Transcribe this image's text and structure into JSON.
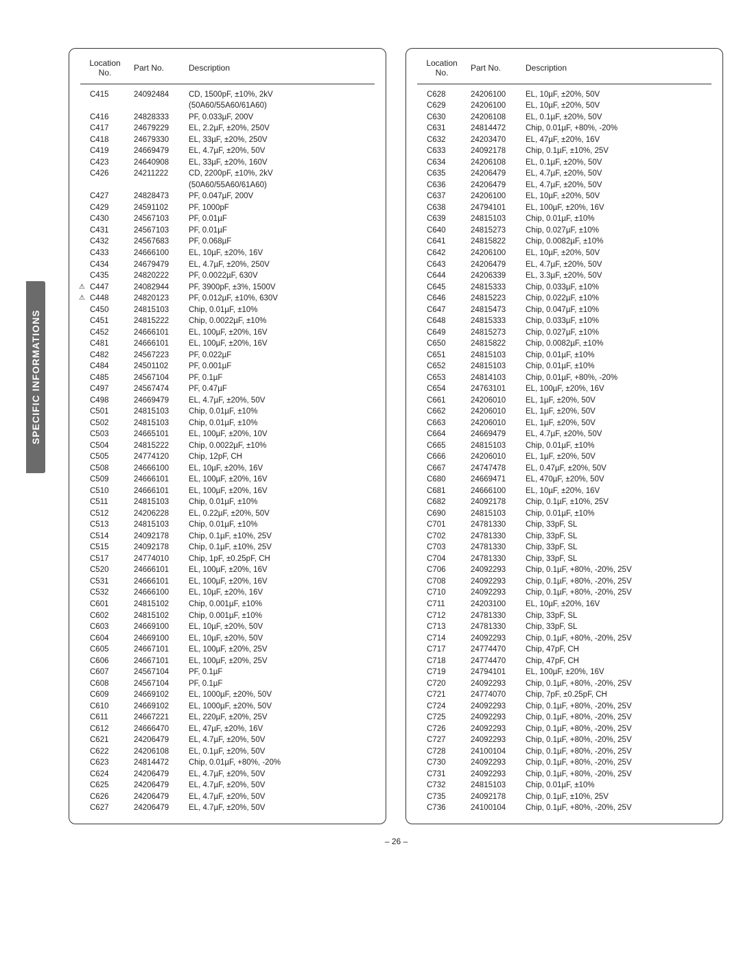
{
  "side_tab": "SPECIFIC INFORMATIONS",
  "page_number": "– 26 –",
  "headers": {
    "location": "Location\nNo.",
    "part_no": "Part No.",
    "description": "Description"
  },
  "left_rows": [
    {
      "loc": "C415",
      "pn": "24092484",
      "desc": "CD, 1500pF, ±10%, 2kV"
    },
    {
      "loc": "",
      "pn": "",
      "desc": "(50A60/55A60/61A60)"
    },
    {
      "loc": "C416",
      "pn": "24828333",
      "desc": "PF, 0.033µF, 200V"
    },
    {
      "loc": "C417",
      "pn": "24679229",
      "desc": "EL, 2.2µF, ±20%, 250V"
    },
    {
      "loc": "C418",
      "pn": "24679330",
      "desc": "EL, 33µF, ±20%, 250V"
    },
    {
      "loc": "C419",
      "pn": "24669479",
      "desc": "EL, 4.7µF, ±20%, 50V"
    },
    {
      "loc": "C423",
      "pn": "24640908",
      "desc": "EL, 33µF, ±20%, 160V"
    },
    {
      "loc": "C426",
      "pn": "24211222",
      "desc": "CD, 2200pF, ±10%, 2kV"
    },
    {
      "loc": "",
      "pn": "",
      "desc": "(50A60/55A60/61A60)"
    },
    {
      "loc": "C427",
      "pn": "24828473",
      "desc": "PF, 0.047µF, 200V"
    },
    {
      "loc": "C429",
      "pn": "24591102",
      "desc": "PF, 1000pF"
    },
    {
      "loc": "C430",
      "pn": "24567103",
      "desc": "PF, 0.01µF"
    },
    {
      "loc": "C431",
      "pn": "24567103",
      "desc": "PF, 0.01µF"
    },
    {
      "loc": "C432",
      "pn": "24567683",
      "desc": "PF, 0.068µF"
    },
    {
      "loc": "C433",
      "pn": "24666100",
      "desc": "EL, 10µF, ±20%, 16V"
    },
    {
      "loc": "C434",
      "pn": "24679479",
      "desc": "EL, 4.7µF, ±20%, 250V"
    },
    {
      "loc": "C435",
      "pn": "24820222",
      "desc": "PF, 0.0022µF, 630V"
    },
    {
      "loc": "C447",
      "pn": "24082944",
      "desc": "PF, 3900pF, ±3%, 1500V",
      "warn": true
    },
    {
      "loc": "C448",
      "pn": "24820123",
      "desc": "PF, 0.012µF, ±10%, 630V",
      "warn": true
    },
    {
      "loc": "C450",
      "pn": "24815103",
      "desc": "Chip, 0.01µF, ±10%"
    },
    {
      "loc": "C451",
      "pn": "24815222",
      "desc": "Chip, 0.0022µF, ±10%"
    },
    {
      "loc": "C452",
      "pn": "24666101",
      "desc": "EL, 100µF, ±20%, 16V"
    },
    {
      "loc": "C481",
      "pn": "24666101",
      "desc": "EL, 100µF, ±20%, 16V"
    },
    {
      "loc": "C482",
      "pn": "24567223",
      "desc": "PF, 0.022µF"
    },
    {
      "loc": "C484",
      "pn": "24501102",
      "desc": "PF, 0.001µF"
    },
    {
      "loc": "C485",
      "pn": "24567104",
      "desc": "PF, 0.1µF"
    },
    {
      "loc": "C497",
      "pn": "24567474",
      "desc": "PF, 0.47µF"
    },
    {
      "loc": "C498",
      "pn": "24669479",
      "desc": "EL, 4.7µF, ±20%, 50V"
    },
    {
      "loc": "C501",
      "pn": "24815103",
      "desc": "Chip, 0.01µF, ±10%"
    },
    {
      "loc": "C502",
      "pn": "24815103",
      "desc": "Chip, 0.01µF, ±10%"
    },
    {
      "loc": "C503",
      "pn": "24665101",
      "desc": "EL, 100µF, ±20%, 10V"
    },
    {
      "loc": "C504",
      "pn": "24815222",
      "desc": "Chip, 0.0022µF, ±10%"
    },
    {
      "loc": "C505",
      "pn": "24774120",
      "desc": "Chip, 12pF, CH"
    },
    {
      "loc": "C508",
      "pn": "24666100",
      "desc": "EL, 10µF, ±20%, 16V"
    },
    {
      "loc": "C509",
      "pn": "24666101",
      "desc": "EL, 100µF, ±20%, 16V"
    },
    {
      "loc": "C510",
      "pn": "24666101",
      "desc": "EL, 100µF, ±20%, 16V"
    },
    {
      "loc": "C511",
      "pn": "24815103",
      "desc": "Chip, 0.01µF, ±10%"
    },
    {
      "loc": "C512",
      "pn": "24206228",
      "desc": "EL, 0.22µF, ±20%, 50V"
    },
    {
      "loc": "C513",
      "pn": "24815103",
      "desc": "Chip, 0.01µF, ±10%"
    },
    {
      "loc": "C514",
      "pn": "24092178",
      "desc": "Chip, 0.1µF, ±10%, 25V"
    },
    {
      "loc": "C515",
      "pn": "24092178",
      "desc": "Chip, 0.1µF, ±10%, 25V"
    },
    {
      "loc": "C517",
      "pn": "24774010",
      "desc": "Chip, 1pF, ±0.25pF, CH"
    },
    {
      "loc": "C520",
      "pn": "24666101",
      "desc": "EL, 100µF, ±20%, 16V"
    },
    {
      "loc": "C531",
      "pn": "24666101",
      "desc": "EL, 100µF, ±20%, 16V"
    },
    {
      "loc": "C532",
      "pn": "24666100",
      "desc": "EL, 10µF, ±20%, 16V"
    },
    {
      "loc": "C601",
      "pn": "24815102",
      "desc": "Chip, 0.001µF, ±10%"
    },
    {
      "loc": "C602",
      "pn": "24815102",
      "desc": "Chip, 0.001µF, ±10%"
    },
    {
      "loc": "C603",
      "pn": "24669100",
      "desc": "EL, 10µF, ±20%, 50V"
    },
    {
      "loc": "C604",
      "pn": "24669100",
      "desc": "EL, 10µF, ±20%, 50V"
    },
    {
      "loc": "C605",
      "pn": "24667101",
      "desc": "EL, 100µF, ±20%, 25V"
    },
    {
      "loc": "C606",
      "pn": "24667101",
      "desc": "EL, 100µF, ±20%, 25V"
    },
    {
      "loc": "C607",
      "pn": "24567104",
      "desc": "PF, 0.1µF"
    },
    {
      "loc": "C608",
      "pn": "24567104",
      "desc": "PF, 0.1µF"
    },
    {
      "loc": "C609",
      "pn": "24669102",
      "desc": "EL, 1000µF, ±20%, 50V"
    },
    {
      "loc": "C610",
      "pn": "24669102",
      "desc": "EL, 1000µF, ±20%, 50V"
    },
    {
      "loc": "C611",
      "pn": "24667221",
      "desc": "EL, 220µF, ±20%, 25V"
    },
    {
      "loc": "C612",
      "pn": "24666470",
      "desc": "EL, 47µF, ±20%, 16V"
    },
    {
      "loc": "C621",
      "pn": "24206479",
      "desc": "EL, 4.7µF, ±20%, 50V"
    },
    {
      "loc": "C622",
      "pn": "24206108",
      "desc": "EL, 0.1µF, ±20%, 50V"
    },
    {
      "loc": "C623",
      "pn": "24814472",
      "desc": "Chip, 0.01µF, +80%, -20%"
    },
    {
      "loc": "C624",
      "pn": "24206479",
      "desc": "EL, 4.7µF, ±20%, 50V"
    },
    {
      "loc": "C625",
      "pn": "24206479",
      "desc": "EL, 4.7µF, ±20%, 50V"
    },
    {
      "loc": "C626",
      "pn": "24206479",
      "desc": "EL, 4.7µF, ±20%, 50V"
    },
    {
      "loc": "C627",
      "pn": "24206479",
      "desc": "EL, 4.7µF, ±20%, 50V"
    }
  ],
  "right_rows": [
    {
      "loc": "C628",
      "pn": "24206100",
      "desc": "EL, 10µF, ±20%, 50V"
    },
    {
      "loc": "C629",
      "pn": "24206100",
      "desc": "EL, 10µF, ±20%, 50V"
    },
    {
      "loc": "C630",
      "pn": "24206108",
      "desc": "EL, 0.1µF, ±20%, 50V"
    },
    {
      "loc": "C631",
      "pn": "24814472",
      "desc": "Chip, 0.01µF, +80%, -20%"
    },
    {
      "loc": "C632",
      "pn": "24203470",
      "desc": "EL, 47µF, ±20%, 16V"
    },
    {
      "loc": "C633",
      "pn": "24092178",
      "desc": "Chip, 0.1µF, ±10%, 25V"
    },
    {
      "loc": "C634",
      "pn": "24206108",
      "desc": "EL, 0.1µF, ±20%, 50V"
    },
    {
      "loc": "C635",
      "pn": "24206479",
      "desc": "EL, 4.7µF, ±20%, 50V"
    },
    {
      "loc": "C636",
      "pn": "24206479",
      "desc": "EL, 4.7µF, ±20%, 50V"
    },
    {
      "loc": "C637",
      "pn": "24206100",
      "desc": "EL, 10µF, ±20%, 50V"
    },
    {
      "loc": "C638",
      "pn": "24794101",
      "desc": "EL, 100µF, ±20%, 16V"
    },
    {
      "loc": "C639",
      "pn": "24815103",
      "desc": "Chip, 0.01µF, ±10%"
    },
    {
      "loc": "C640",
      "pn": "24815273",
      "desc": "Chip, 0.027µF, ±10%"
    },
    {
      "loc": "C641",
      "pn": "24815822",
      "desc": "Chip, 0.0082µF, ±10%"
    },
    {
      "loc": "C642",
      "pn": "24206100",
      "desc": "EL, 10µF, ±20%, 50V"
    },
    {
      "loc": "C643",
      "pn": "24206479",
      "desc": "EL, 4.7µF, ±20%, 50V"
    },
    {
      "loc": "C644",
      "pn": "24206339",
      "desc": "EL, 3.3µF, ±20%, 50V"
    },
    {
      "loc": "C645",
      "pn": "24815333",
      "desc": "Chip, 0.033µF, ±10%"
    },
    {
      "loc": "C646",
      "pn": "24815223",
      "desc": "Chip, 0.022µF, ±10%"
    },
    {
      "loc": "C647",
      "pn": "24815473",
      "desc": "Chip, 0.047µF, ±10%"
    },
    {
      "loc": "C648",
      "pn": "24815333",
      "desc": "Chip, 0.033µF, ±10%"
    },
    {
      "loc": "C649",
      "pn": "24815273",
      "desc": "Chip, 0.027µF, ±10%"
    },
    {
      "loc": "C650",
      "pn": "24815822",
      "desc": "Chip, 0.0082µF, ±10%"
    },
    {
      "loc": "C651",
      "pn": "24815103",
      "desc": "Chip, 0.01µF, ±10%"
    },
    {
      "loc": "C652",
      "pn": "24815103",
      "desc": "Chip, 0.01µF, ±10%"
    },
    {
      "loc": "C653",
      "pn": "24814103",
      "desc": "Chip, 0.01µF, +80%, -20%"
    },
    {
      "loc": "C654",
      "pn": "24763101",
      "desc": "EL, 100µF, ±20%, 16V"
    },
    {
      "loc": "C661",
      "pn": "24206010",
      "desc": "EL, 1µF, ±20%, 50V"
    },
    {
      "loc": "C662",
      "pn": "24206010",
      "desc": "EL, 1µF, ±20%, 50V"
    },
    {
      "loc": "C663",
      "pn": "24206010",
      "desc": "EL, 1µF, ±20%, 50V"
    },
    {
      "loc": "C664",
      "pn": "24669479",
      "desc": "EL, 4.7µF, ±20%, 50V"
    },
    {
      "loc": "C665",
      "pn": "24815103",
      "desc": "Chip, 0.01µF, ±10%"
    },
    {
      "loc": "C666",
      "pn": "24206010",
      "desc": "EL, 1µF, ±20%, 50V"
    },
    {
      "loc": "C667",
      "pn": "24747478",
      "desc": "EL, 0.47µF, ±20%, 50V"
    },
    {
      "loc": "C680",
      "pn": "24669471",
      "desc": "EL, 470µF, ±20%, 50V"
    },
    {
      "loc": "C681",
      "pn": "24666100",
      "desc": "EL, 10µF, ±20%, 16V"
    },
    {
      "loc": "C682",
      "pn": "24092178",
      "desc": "Chip, 0.1µF, ±10%, 25V"
    },
    {
      "loc": "C690",
      "pn": "24815103",
      "desc": "Chip, 0.01µF, ±10%"
    },
    {
      "loc": "C701",
      "pn": "24781330",
      "desc": "Chip, 33pF, SL"
    },
    {
      "loc": "C702",
      "pn": "24781330",
      "desc": "Chip, 33pF, SL"
    },
    {
      "loc": "C703",
      "pn": "24781330",
      "desc": "Chip, 33pF, SL"
    },
    {
      "loc": "C704",
      "pn": "24781330",
      "desc": "Chip, 33pF, SL"
    },
    {
      "loc": "C706",
      "pn": "24092293",
      "desc": "Chip, 0.1µF, +80%, -20%, 25V"
    },
    {
      "loc": "C708",
      "pn": "24092293",
      "desc": "Chip, 0.1µF, +80%, -20%, 25V"
    },
    {
      "loc": "C710",
      "pn": "24092293",
      "desc": "Chip, 0.1µF, +80%, -20%, 25V"
    },
    {
      "loc": "C711",
      "pn": "24203100",
      "desc": "EL, 10µF, ±20%, 16V"
    },
    {
      "loc": "C712",
      "pn": "24781330",
      "desc": "Chip, 33pF, SL"
    },
    {
      "loc": "C713",
      "pn": "24781330",
      "desc": "Chip, 33pF, SL"
    },
    {
      "loc": "C714",
      "pn": "24092293",
      "desc": "Chip, 0.1µF, +80%, -20%, 25V"
    },
    {
      "loc": "C717",
      "pn": "24774470",
      "desc": "Chip, 47pF, CH"
    },
    {
      "loc": "C718",
      "pn": "24774470",
      "desc": "Chip, 47pF, CH"
    },
    {
      "loc": "C719",
      "pn": "24794101",
      "desc": "EL, 100µF, ±20%, 16V"
    },
    {
      "loc": "C720",
      "pn": "24092293",
      "desc": "Chip, 0.1µF, +80%, -20%, 25V"
    },
    {
      "loc": "C721",
      "pn": "24774070",
      "desc": "Chip, 7pF, ±0.25pF, CH"
    },
    {
      "loc": "C724",
      "pn": "24092293",
      "desc": "Chip, 0.1µF, +80%, -20%, 25V"
    },
    {
      "loc": "C725",
      "pn": "24092293",
      "desc": "Chip, 0.1µF, +80%, -20%, 25V"
    },
    {
      "loc": "C726",
      "pn": "24092293",
      "desc": "Chip, 0.1µF, +80%, -20%, 25V"
    },
    {
      "loc": "C727",
      "pn": "24092293",
      "desc": "Chip, 0.1µF, +80%, -20%, 25V"
    },
    {
      "loc": "C728",
      "pn": "24100104",
      "desc": "Chip, 0.1µF, +80%, -20%, 25V"
    },
    {
      "loc": "C730",
      "pn": "24092293",
      "desc": "Chip, 0.1µF, +80%, -20%, 25V"
    },
    {
      "loc": "C731",
      "pn": "24092293",
      "desc": "Chip, 0.1µF, +80%, -20%, 25V"
    },
    {
      "loc": "C732",
      "pn": "24815103",
      "desc": "Chip, 0.01µF, ±10%"
    },
    {
      "loc": "C735",
      "pn": "24092178",
      "desc": "Chip, 0.1µF, ±10%, 25V"
    },
    {
      "loc": "C736",
      "pn": "24100104",
      "desc": "Chip, 0.1µF, +80%, -20%, 25V"
    }
  ]
}
